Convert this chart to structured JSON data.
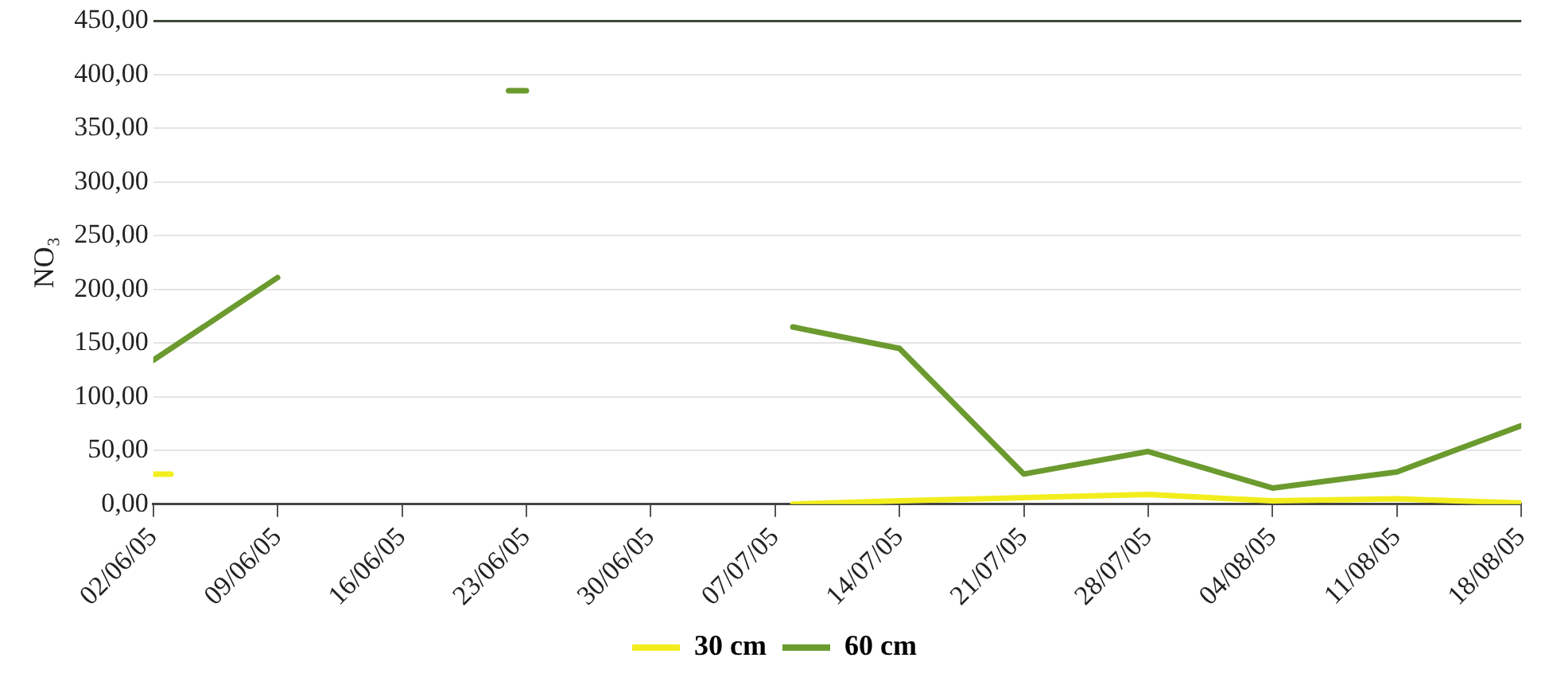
{
  "chart_data": {
    "type": "line",
    "ylabel": "NO₃",
    "ylim": [
      0,
      450
    ],
    "yticks": [
      {
        "value": 0,
        "label": "0,00"
      },
      {
        "value": 50,
        "label": "50,00"
      },
      {
        "value": 100,
        "label": "100,00"
      },
      {
        "value": 150,
        "label": "150,00"
      },
      {
        "value": 200,
        "label": "200,00"
      },
      {
        "value": 250,
        "label": "250,00"
      },
      {
        "value": 300,
        "label": "300,00"
      },
      {
        "value": 350,
        "label": "350,00"
      },
      {
        "value": 400,
        "label": "400,00"
      },
      {
        "value": 450,
        "label": "450,00"
      }
    ],
    "xlim": [
      "--06-02",
      "--08-18"
    ],
    "xticks": [
      {
        "value": "--06-02",
        "label": "02/06/05"
      },
      {
        "value": "--06-09",
        "label": "09/06/05"
      },
      {
        "value": "--06-16",
        "label": "16/06/05"
      },
      {
        "value": "--06-23",
        "label": "23/06/05"
      },
      {
        "value": "--06-30",
        "label": "30/06/05"
      },
      {
        "value": "--07-07",
        "label": "07/07/05"
      },
      {
        "value": "--07-14",
        "label": "14/07/05"
      },
      {
        "value": "--07-21",
        "label": "21/07/05"
      },
      {
        "value": "--07-28",
        "label": "28/07/05"
      },
      {
        "value": "--08-04",
        "label": "04/08/05"
      },
      {
        "value": "--08-11",
        "label": "11/08/05"
      },
      {
        "value": "--08-18",
        "label": "18/08/05"
      }
    ],
    "series": [
      {
        "name": "30 cm",
        "color": "#f2ee1e",
        "x": [
          "--06-02",
          "--06-03",
          "--06-16",
          "--07-08",
          "--07-14",
          "--07-21",
          "--07-28",
          "--08-04",
          "--08-11",
          "--08-18"
        ],
        "values": [
          28,
          28,
          null,
          0,
          3,
          6,
          9,
          3,
          5,
          1
        ]
      },
      {
        "name": "60 cm",
        "color": "#6b9a2e",
        "x": [
          "--06-02",
          "--06-09",
          "--06-16",
          "--06-22",
          "--06-23",
          "--06-30",
          "--07-08",
          "--07-14",
          "--07-21",
          "--07-28",
          "--08-04",
          "--08-11",
          "--08-18"
        ],
        "values": [
          134,
          211,
          null,
          385,
          385,
          null,
          165,
          145,
          28,
          49,
          15,
          30,
          73
        ]
      }
    ],
    "grid": "y",
    "legend": "bottom",
    "marker": "none",
    "line_style": "solid"
  }
}
